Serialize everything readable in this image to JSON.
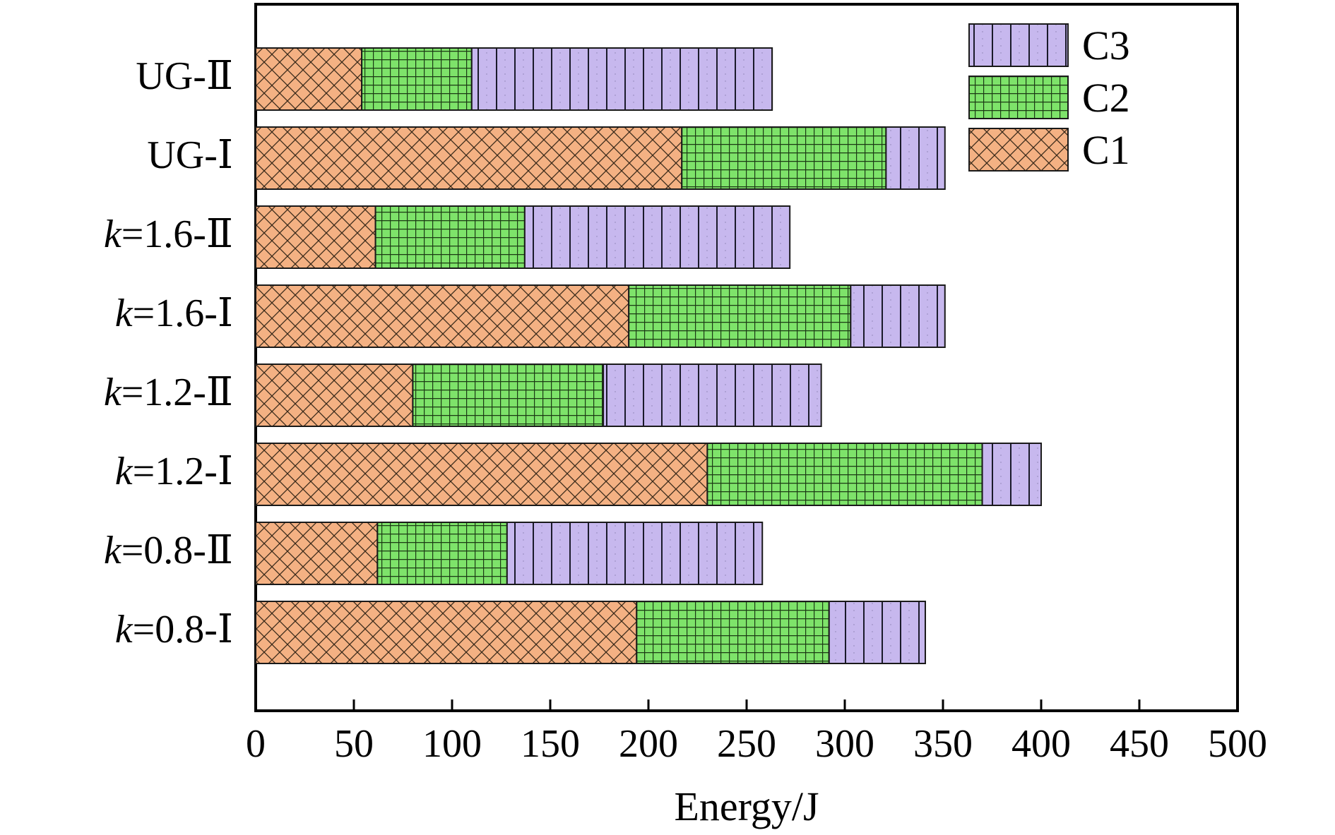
{
  "chart_data": {
    "type": "bar",
    "orientation": "horizontal",
    "stacked": true,
    "categories": [
      {
        "prefix": "",
        "italic": "",
        "rest": "UG-Ⅱ"
      },
      {
        "prefix": "",
        "italic": "",
        "rest": "UG-Ⅰ"
      },
      {
        "prefix": "",
        "italic": "k",
        "rest": "=1.6-Ⅱ"
      },
      {
        "prefix": "",
        "italic": "k",
        "rest": "=1.6-Ⅰ"
      },
      {
        "prefix": "",
        "italic": "k",
        "rest": "=1.2-Ⅱ"
      },
      {
        "prefix": "",
        "italic": "k",
        "rest": "=1.2-Ⅰ"
      },
      {
        "prefix": "",
        "italic": "k",
        "rest": "=0.8-Ⅱ"
      },
      {
        "prefix": "",
        "italic": "k",
        "rest": "=0.8-Ⅰ"
      }
    ],
    "series": [
      {
        "name": "C1",
        "color": "#f4b183",
        "pattern": "crosshatch",
        "values": [
          54,
          217,
          61,
          190,
          80,
          230,
          62,
          194
        ]
      },
      {
        "name": "C2",
        "color": "#7ee36a",
        "pattern": "grid",
        "values": [
          56,
          104,
          76,
          113,
          97,
          140,
          66,
          98
        ]
      },
      {
        "name": "C3",
        "color": "#c7b8ee",
        "pattern": "vertical",
        "values": [
          153,
          30,
          135,
          48,
          111,
          30,
          130,
          49
        ]
      }
    ],
    "xlabel": "Energy/J",
    "ylabel": "",
    "xlim": [
      0,
      500
    ],
    "xticks": [
      "0",
      "50",
      "100",
      "150",
      "200",
      "250",
      "300",
      "350",
      "400",
      "450",
      "500"
    ],
    "grid": false,
    "legend_position": "top-right",
    "legend_order": [
      "C3",
      "C2",
      "C1"
    ]
  }
}
